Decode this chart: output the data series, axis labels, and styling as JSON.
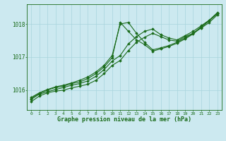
{
  "title": "Graphe pression niveau de la mer (hPa)",
  "background_color": "#cce9f0",
  "grid_color": "#a8d4dc",
  "line_color": "#1a6b1a",
  "xlim": [
    -0.5,
    23.5
  ],
  "ylim": [
    1015.4,
    1018.6
  ],
  "yticks": [
    1016,
    1017,
    1018
  ],
  "xticks": [
    0,
    1,
    2,
    3,
    4,
    5,
    6,
    7,
    8,
    9,
    10,
    11,
    12,
    13,
    14,
    15,
    16,
    17,
    18,
    19,
    20,
    21,
    22,
    23
  ],
  "series": [
    [
      1015.65,
      1015.82,
      1015.92,
      1015.97,
      1016.0,
      1016.07,
      1016.12,
      1016.18,
      1016.3,
      1016.5,
      1016.75,
      1016.9,
      1017.2,
      1017.45,
      1017.6,
      1017.72,
      1017.62,
      1017.52,
      1017.48,
      1017.62,
      1017.72,
      1017.88,
      1018.05,
      1018.28
    ],
    [
      1015.72,
      1015.88,
      1015.95,
      1016.02,
      1016.08,
      1016.15,
      1016.2,
      1016.28,
      1016.42,
      1016.62,
      1016.88,
      1017.05,
      1017.4,
      1017.62,
      1017.78,
      1017.85,
      1017.68,
      1017.58,
      1017.52,
      1017.65,
      1017.78,
      1017.95,
      1018.12,
      1018.32
    ],
    [
      1015.78,
      1015.92,
      1016.02,
      1016.1,
      1016.15,
      1016.22,
      1016.3,
      1016.4,
      1016.55,
      1016.75,
      1017.05,
      1018.0,
      1018.05,
      1017.72,
      1017.45,
      1017.22,
      1017.28,
      1017.35,
      1017.45,
      1017.58,
      1017.72,
      1017.92,
      1018.12,
      1018.35
    ],
    [
      1015.75,
      1015.9,
      1016.0,
      1016.08,
      1016.12,
      1016.2,
      1016.25,
      1016.35,
      1016.5,
      1016.7,
      1016.98,
      1018.05,
      1017.78,
      1017.52,
      1017.38,
      1017.18,
      1017.25,
      1017.32,
      1017.42,
      1017.55,
      1017.7,
      1017.9,
      1018.1,
      1018.32
    ]
  ]
}
